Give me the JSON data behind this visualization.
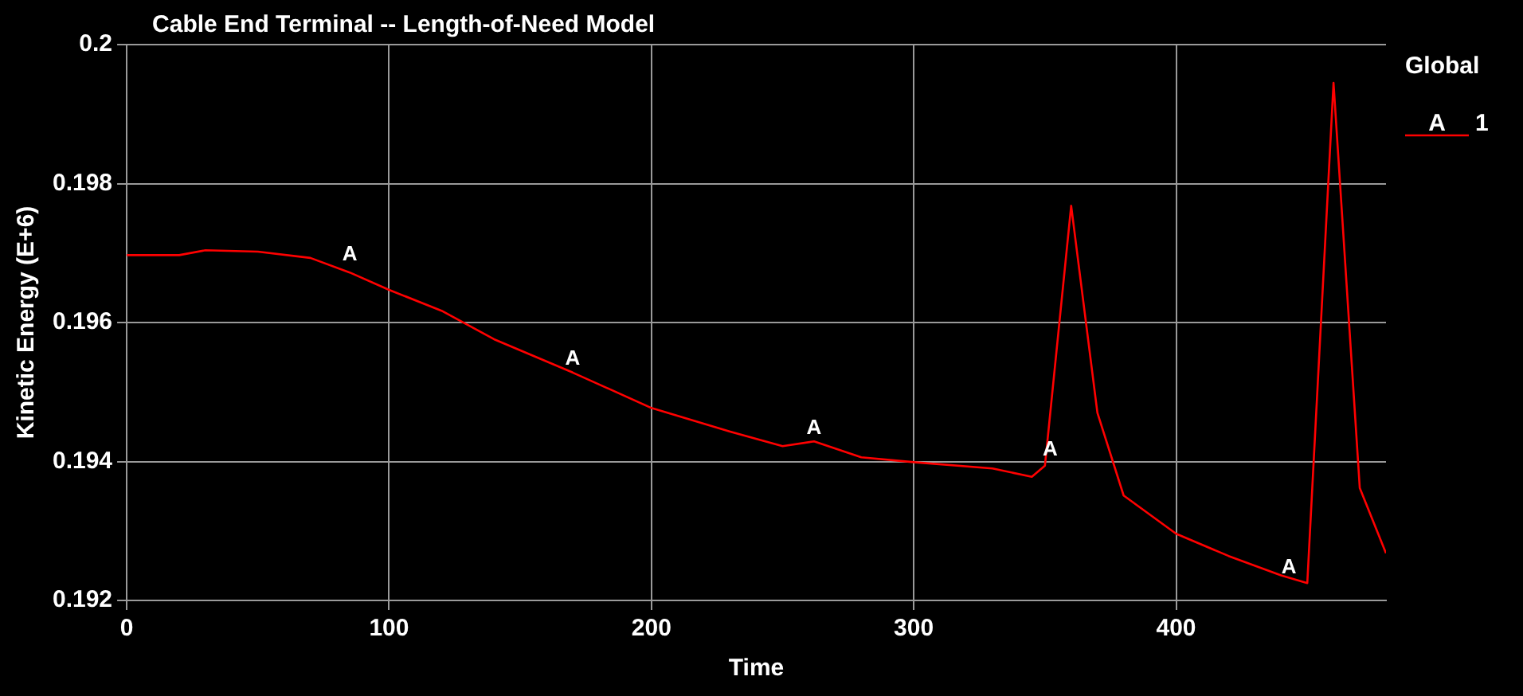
{
  "chart_data": {
    "type": "line",
    "title": "Cable End Terminal -- Length-of-Need Model",
    "xlabel": "Time",
    "ylabel": "Kinetic Energy (E+6)",
    "legend_title": "Global",
    "legend": "right",
    "grid": true,
    "marker": "none",
    "line_style": "solid",
    "xlim": [
      0,
      480
    ],
    "xticks": [
      0,
      100,
      200,
      300,
      400
    ],
    "ylim": [
      0.192,
      0.2
    ],
    "yticks": [
      0.192,
      0.194,
      0.196,
      0.198,
      0.2
    ],
    "series": [
      {
        "name": "1",
        "color": "#ff0000",
        "x": [
          0,
          20,
          30,
          50,
          70,
          85,
          100,
          120,
          140,
          170,
          200,
          230,
          250,
          262,
          280,
          300,
          330,
          345,
          350,
          360,
          370,
          380,
          400,
          420,
          440,
          450,
          460,
          470,
          480
        ],
        "values": [
          0.19697,
          0.19697,
          0.19704,
          0.19702,
          0.19693,
          0.19672,
          0.19647,
          0.19617,
          0.19576,
          0.19528,
          0.19477,
          0.19443,
          0.19422,
          0.19429,
          0.19406,
          0.19399,
          0.1939,
          0.19378,
          0.19394,
          0.19768,
          0.1947,
          0.19351,
          0.19296,
          0.19264,
          0.19236,
          0.19225,
          0.19945,
          0.19362,
          0.19268
        ]
      }
    ],
    "annotations": [
      {
        "text": "A",
        "x": 85,
        "y": 0.1968
      },
      {
        "text": "A",
        "x": 170,
        "y": 0.1953
      },
      {
        "text": "A",
        "x": 262,
        "y": 0.1943
      },
      {
        "text": "A",
        "x": 352,
        "y": 0.194
      },
      {
        "text": "A",
        "x": 443,
        "y": 0.1923
      }
    ]
  }
}
